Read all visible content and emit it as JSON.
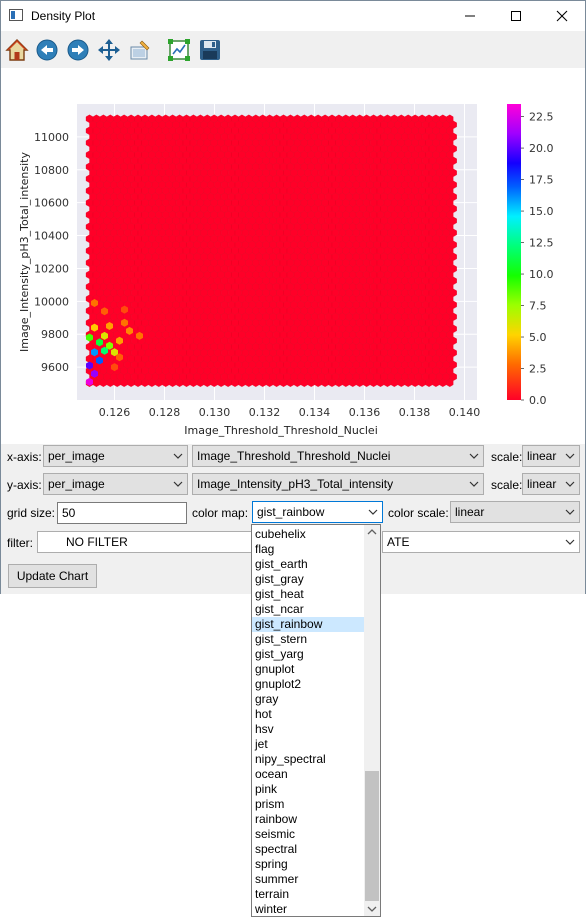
{
  "window": {
    "title": "Density Plot"
  },
  "toolbar": {
    "icons": [
      "home-icon",
      "back-icon",
      "forward-icon",
      "pan-icon",
      "subplots-icon",
      "edit-axis-icon",
      "save-icon"
    ]
  },
  "chart_data": {
    "type": "heatmap",
    "subtype": "hexbin",
    "xlabel": "Image_Threshold_Threshold_Nuclei",
    "ylabel": "Image_Intensity_pH3_Total_intensity",
    "xlim": [
      0.1245,
      0.1405
    ],
    "ylim": [
      9400,
      11200
    ],
    "xticks": [
      "0.126",
      "0.128",
      "0.130",
      "0.132",
      "0.134",
      "0.136",
      "0.138",
      "0.140"
    ],
    "yticks": [
      "9600",
      "9800",
      "10000",
      "10200",
      "10400",
      "10600",
      "10800",
      "11000"
    ],
    "colorbar": {
      "min": 0,
      "max": 23.5,
      "ticks": [
        "0.0",
        "2.5",
        "5.0",
        "7.5",
        "10.0",
        "12.5",
        "15.0",
        "17.5",
        "20.0",
        "22.5"
      ],
      "colormap": "gist_rainbow"
    },
    "grid": true,
    "background": "#eaeaf2",
    "base_color": "#ff0028",
    "hot_cells": [
      {
        "x": 0.125,
        "y": 9510,
        "count": 23
      },
      {
        "x": 0.1252,
        "y": 9560,
        "count": 21
      },
      {
        "x": 0.125,
        "y": 9610,
        "count": 20
      },
      {
        "x": 0.1254,
        "y": 9640,
        "count": 17
      },
      {
        "x": 0.1252,
        "y": 9690,
        "count": 16
      },
      {
        "x": 0.1256,
        "y": 9700,
        "count": 12
      },
      {
        "x": 0.1254,
        "y": 9750,
        "count": 11
      },
      {
        "x": 0.1258,
        "y": 9730,
        "count": 8
      },
      {
        "x": 0.125,
        "y": 9780,
        "count": 9
      },
      {
        "x": 0.1256,
        "y": 9790,
        "count": 6
      },
      {
        "x": 0.126,
        "y": 9690,
        "count": 6
      },
      {
        "x": 0.1252,
        "y": 9840,
        "count": 5
      },
      {
        "x": 0.1258,
        "y": 9850,
        "count": 4
      },
      {
        "x": 0.1262,
        "y": 9760,
        "count": 4
      },
      {
        "x": 0.1266,
        "y": 9820,
        "count": 3.5
      },
      {
        "x": 0.1264,
        "y": 9870,
        "count": 3
      },
      {
        "x": 0.1252,
        "y": 9990,
        "count": 3
      },
      {
        "x": 0.127,
        "y": 9790,
        "count": 3
      },
      {
        "x": 0.1256,
        "y": 9940,
        "count": 2.5
      },
      {
        "x": 0.1264,
        "y": 9950,
        "count": 2
      },
      {
        "x": 0.1262,
        "y": 9660,
        "count": 2.5
      },
      {
        "x": 0.126,
        "y": 9600,
        "count": 2
      }
    ]
  },
  "controls": {
    "x_axis": {
      "label": "x-axis:",
      "table": "per_image",
      "column": "Image_Threshold_Threshold_Nuclei",
      "scale_label": "scale:",
      "scale": "linear"
    },
    "y_axis": {
      "label": "y-axis:",
      "table": "per_image",
      "column": "Image_Intensity_pH3_Total_intensity",
      "scale_label": "scale:",
      "scale": "linear"
    },
    "grid_size": {
      "label": "grid size:",
      "value": "50"
    },
    "color_map": {
      "label": "color map:",
      "value": "gist_rainbow"
    },
    "color_scale": {
      "label": "color scale:",
      "value": "linear"
    },
    "filter": {
      "label": "filter:",
      "value": "NO FILTER",
      "aggregate_partial": "ATE"
    },
    "update_button": "Update Chart"
  },
  "colormap_dropdown": {
    "items": [
      "cubehelix",
      "flag",
      "gist_earth",
      "gist_gray",
      "gist_heat",
      "gist_ncar",
      "gist_rainbow",
      "gist_stern",
      "gist_yarg",
      "gnuplot",
      "gnuplot2",
      "gray",
      "hot",
      "hsv",
      "jet",
      "nipy_spectral",
      "ocean",
      "pink",
      "prism",
      "rainbow",
      "seismic",
      "spectral",
      "spring",
      "summer",
      "terrain",
      "winter"
    ],
    "selected": "gist_rainbow"
  }
}
